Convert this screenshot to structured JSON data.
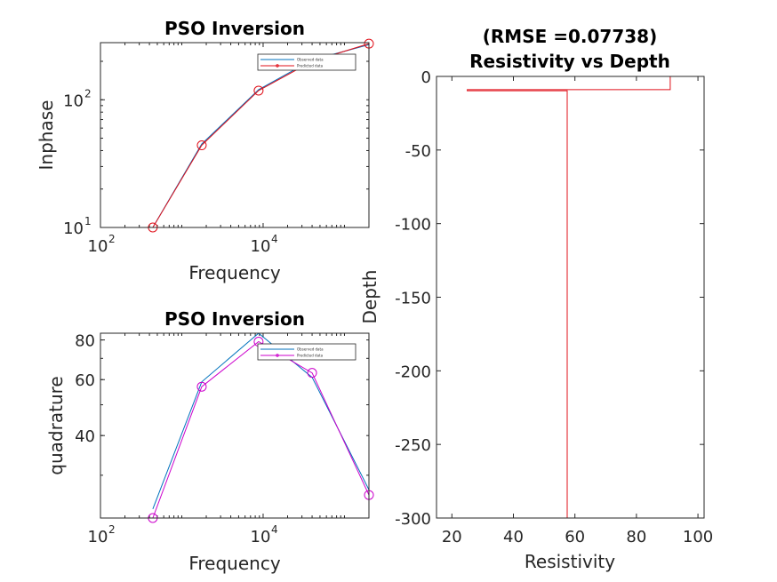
{
  "chart_data": [
    {
      "type": "line",
      "title": "PSO Inversion",
      "xlabel": "Frequency",
      "ylabel": "Inphase",
      "xscale": "log",
      "yscale": "log",
      "xlim": [
        100,
        200000
      ],
      "ylim": [
        10,
        280
      ],
      "xticks": [
        {
          "base": "10",
          "exp": "2",
          "value": 100
        },
        {
          "base": "10",
          "exp": "4",
          "value": 10000
        }
      ],
      "yticks": [
        {
          "base": "10",
          "exp": "1",
          "value": 10
        },
        {
          "base": "10",
          "exp": "2",
          "value": 100
        }
      ],
      "legend": {
        "placement": "top-right",
        "entries": [
          "Observed data",
          "Predicted data"
        ]
      },
      "series": [
        {
          "name": "Observed data",
          "color": "#0072bd",
          "marker": "none",
          "x": [
            440,
            1760,
            8800,
            40000,
            200000
          ],
          "y": [
            10,
            45,
            120,
            205,
            270
          ]
        },
        {
          "name": "Predicted data",
          "color": "#e0101a",
          "marker": "circle",
          "x": [
            440,
            1760,
            8800,
            40000,
            200000
          ],
          "y": [
            10,
            44,
            118,
            200,
            275
          ]
        }
      ]
    },
    {
      "type": "line",
      "title": "PSO Inversion",
      "xlabel": "Frequency",
      "ylabel": "quadrature",
      "xscale": "log",
      "yscale": "log",
      "xlim": [
        100,
        200000
      ],
      "ylim": [
        22,
        84
      ],
      "xticks": [
        {
          "base": "10",
          "exp": "2",
          "value": 100
        },
        {
          "base": "10",
          "exp": "4",
          "value": 10000
        }
      ],
      "yticks": [
        {
          "label": "40",
          "value": 40
        },
        {
          "label": "60",
          "value": 60
        },
        {
          "label": "80",
          "value": 80
        }
      ],
      "legend": {
        "placement": "top-right",
        "entries": [
          "Observed data",
          "Predicted data"
        ]
      },
      "series": [
        {
          "name": "Observed data",
          "color": "#0072bd",
          "marker": "none",
          "x": [
            440,
            1760,
            8800,
            40000,
            200000
          ],
          "y": [
            23.5,
            59,
            84,
            61,
            27
          ]
        },
        {
          "name": "Predicted data",
          "color": "#cc00cc",
          "marker": "circle",
          "x": [
            440,
            1760,
            8800,
            40000,
            200000
          ],
          "y": [
            22,
            57,
            79,
            63,
            26
          ]
        }
      ]
    },
    {
      "type": "line",
      "title_lines": [
        "(RMSE =0.07738)",
        "Resistivity vs Depth"
      ],
      "xlabel": "Resistivity",
      "ylabel": "Depth",
      "xlim": [
        15,
        102
      ],
      "ylim": [
        -300,
        0
      ],
      "xticks": [
        20,
        40,
        60,
        80,
        100
      ],
      "yticks": [
        0,
        -50,
        -100,
        -150,
        -200,
        -250,
        -300
      ],
      "series": [
        {
          "color": "#e0101a",
          "step": true,
          "points": [
            [
              91,
              0
            ],
            [
              91,
              -9
            ],
            [
              25,
              -9
            ],
            [
              25,
              -9.7
            ],
            [
              57.5,
              -9.7
            ],
            [
              57.5,
              -300
            ]
          ]
        }
      ]
    }
  ]
}
